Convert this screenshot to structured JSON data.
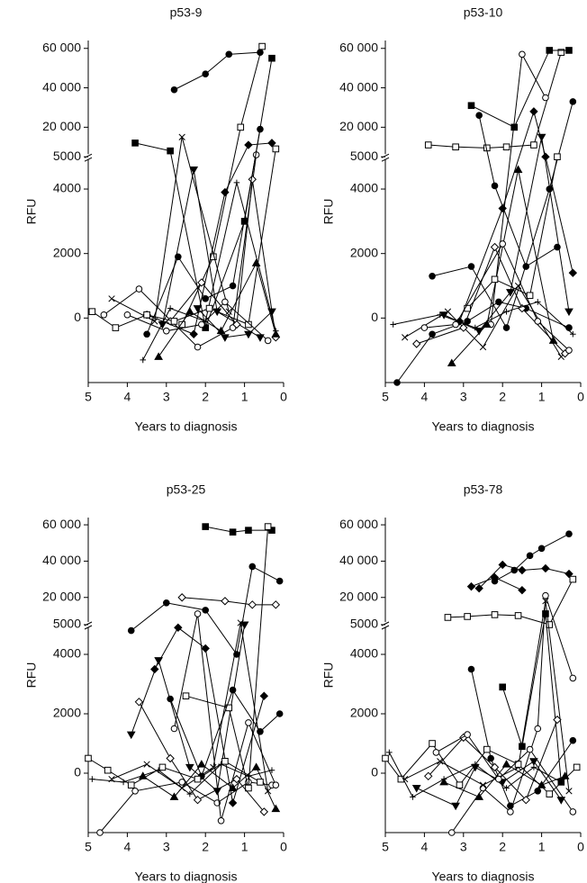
{
  "chart_data": [
    {
      "type": "line",
      "title": "p53-9",
      "xlabel": "Years to diagnosis",
      "ylabel": "RFU",
      "color": "#000000",
      "xlim": [
        5,
        0
      ],
      "xticks": [
        5,
        4,
        3,
        2,
        1,
        0
      ],
      "ylim": [
        -2000,
        64000
      ],
      "y_break": 5000,
      "yticks": [
        0,
        2000,
        4000,
        5000,
        {
          "value": 20000,
          "label": "20 000"
        },
        {
          "value": 40000,
          "label": "40 000"
        },
        {
          "value": 60000,
          "label": "60 000"
        }
      ],
      "series": [
        {
          "marker": "circle",
          "x": [
            2.8,
            2.0,
            1.4,
            0.6
          ],
          "values": [
            39000,
            47000,
            57000,
            58000
          ]
        },
        {
          "marker": "square-open",
          "x": [
            2.6,
            1.8,
            1.1,
            0.55
          ],
          "values": [
            -200,
            1900,
            20000,
            61000
          ]
        },
        {
          "marker": "square",
          "x": [
            3.8,
            2.9,
            2.0,
            1.0,
            0.3
          ],
          "values": [
            12000,
            8000,
            -300,
            3000,
            55000
          ]
        },
        {
          "marker": "diamond",
          "x": [
            3.5,
            2.3,
            1.5,
            0.9,
            0.3
          ],
          "values": [
            100,
            -500,
            3900,
            11000,
            12000
          ]
        },
        {
          "marker": "triangle-down",
          "x": [
            3.1,
            2.3,
            1.7,
            0.6
          ],
          "values": [
            -200,
            4600,
            200,
            -600
          ]
        },
        {
          "marker": "circle-open",
          "x": [
            4.6,
            3.7,
            2.2,
            1.3,
            0.7
          ],
          "values": [
            100,
            900,
            -900,
            -300,
            6000
          ]
        },
        {
          "marker": "cross",
          "x": [
            4.4,
            3.3,
            2.6,
            1.4
          ],
          "values": [
            600,
            -100,
            15000,
            200
          ]
        },
        {
          "marker": "plus",
          "x": [
            3.6,
            2.9,
            2.0,
            1.2,
            0.2
          ],
          "values": [
            -1300,
            300,
            -100,
            4200,
            -400
          ]
        },
        {
          "marker": "diamond-open",
          "x": [
            2.9,
            2.1,
            1.2,
            0.8,
            0.2
          ],
          "values": [
            -100,
            1100,
            -200,
            4300,
            -600
          ]
        },
        {
          "marker": "triangle",
          "x": [
            3.2,
            2.4,
            1.6,
            0.7,
            0.2
          ],
          "values": [
            -1200,
            200,
            -400,
            1700,
            -500
          ]
        },
        {
          "marker": "square-open",
          "x": [
            4.9,
            4.3,
            3.5,
            2.8,
            1.9,
            0.9,
            0.2
          ],
          "values": [
            200,
            -300,
            100,
            -100,
            300,
            -200,
            9000
          ]
        },
        {
          "marker": "circle",
          "x": [
            3.5,
            2.7,
            2.0,
            1.3,
            0.6
          ],
          "values": [
            -500,
            1900,
            600,
            1000,
            19000
          ]
        },
        {
          "marker": "triangle-down",
          "x": [
            2.2,
            1.5,
            0.9,
            0.3
          ],
          "values": [
            300,
            -600,
            -500,
            200
          ]
        },
        {
          "marker": "circle-open",
          "x": [
            4.0,
            3.0,
            2.1,
            1.5,
            0.4
          ],
          "values": [
            100,
            -400,
            -200,
            500,
            -700
          ]
        }
      ]
    },
    {
      "type": "line",
      "title": "p53-10",
      "xlabel": "Years to diagnosis",
      "ylabel": "RFU",
      "color": "#000000",
      "xlim": [
        5,
        0
      ],
      "xticks": [
        5,
        4,
        3,
        2,
        1,
        0
      ],
      "ylim": [
        -2000,
        64000
      ],
      "y_break": 5000,
      "yticks": [
        0,
        2000,
        4000,
        5000,
        {
          "value": 20000,
          "label": "20 000"
        },
        {
          "value": 40000,
          "label": "40 000"
        },
        {
          "value": 60000,
          "label": "60 000"
        }
      ],
      "series": [
        {
          "marker": "circle",
          "x": [
            4.7,
            3.8,
            2.9,
            2.1,
            1.4,
            0.3
          ],
          "values": [
            -2000,
            -500,
            -100,
            500,
            300,
            -300
          ]
        },
        {
          "marker": "square-open",
          "x": [
            3.9,
            3.2,
            2.4,
            1.9,
            1.2,
            0.5
          ],
          "values": [
            11000,
            10000,
            9500,
            10000,
            11000,
            58000
          ]
        },
        {
          "marker": "circle-open",
          "x": [
            2.3,
            1.5,
            0.9
          ],
          "values": [
            -200,
            57000,
            35000
          ]
        },
        {
          "marker": "square",
          "x": [
            2.8,
            1.7,
            0.8,
            0.3
          ],
          "values": [
            31000,
            20000,
            59000,
            59000
          ]
        },
        {
          "marker": "circle",
          "x": [
            2.6,
            2.2,
            1.4,
            0.6
          ],
          "values": [
            26000,
            4100,
            1600,
            2200
          ]
        },
        {
          "marker": "diamond",
          "x": [
            3.1,
            2.0,
            1.2,
            0.9,
            0.2
          ],
          "values": [
            -100,
            3400,
            28000,
            5000,
            1400
          ]
        },
        {
          "marker": "triangle",
          "x": [
            3.3,
            2.4,
            1.6,
            0.7
          ],
          "values": [
            -1400,
            -200,
            4600,
            -700
          ]
        },
        {
          "marker": "circle",
          "x": [
            3.8,
            2.8,
            1.9,
            0.8,
            0.2
          ],
          "values": [
            1300,
            1600,
            -300,
            4000,
            33000
          ]
        },
        {
          "marker": "cross",
          "x": [
            4.5,
            3.4,
            2.5,
            1.6,
            0.5
          ],
          "values": [
            -600,
            200,
            -900,
            1000,
            -1200
          ]
        },
        {
          "marker": "diamond-open",
          "x": [
            4.2,
            3.0,
            2.2,
            1.5,
            0.4
          ],
          "values": [
            -800,
            -300,
            2200,
            300,
            -1100
          ]
        },
        {
          "marker": "triangle-down",
          "x": [
            3.5,
            2.6,
            1.8,
            1.0,
            0.3
          ],
          "values": [
            100,
            -400,
            800,
            15000,
            200
          ]
        },
        {
          "marker": "plus",
          "x": [
            4.8,
            3.6,
            2.7,
            1.9,
            1.1,
            0.2
          ],
          "values": [
            -200,
            100,
            -300,
            200,
            500,
            -500
          ]
        },
        {
          "marker": "square-open",
          "x": [
            2.9,
            2.2,
            1.3,
            0.6
          ],
          "values": [
            300,
            1200,
            700,
            5000
          ]
        },
        {
          "marker": "circle-open",
          "x": [
            4.0,
            3.2,
            2.0,
            1.1,
            0.3
          ],
          "values": [
            -300,
            -200,
            2300,
            -100,
            -1000
          ]
        }
      ]
    },
    {
      "type": "line",
      "title": "p53-25",
      "xlabel": "Years to diagnosis",
      "ylabel": "RFU",
      "color": "#000000",
      "xlim": [
        5,
        0
      ],
      "xticks": [
        5,
        4,
        3,
        2,
        1,
        0
      ],
      "ylim": [
        -2000,
        64000
      ],
      "y_break": 5000,
      "yticks": [
        0,
        2000,
        4000,
        5000,
        {
          "value": 20000,
          "label": "20 000"
        },
        {
          "value": 40000,
          "label": "40 000"
        },
        {
          "value": 60000,
          "label": "60 000"
        }
      ],
      "series": [
        {
          "marker": "circle-open",
          "x": [
            4.7,
            3.8,
            2.6,
            1.7,
            0.9,
            0.3
          ],
          "values": [
            -2000,
            -600,
            -300,
            -1000,
            -300,
            -400
          ]
        },
        {
          "marker": "square",
          "x": [
            2.0,
            1.3,
            0.9,
            0.3
          ],
          "values": [
            59000,
            56000,
            57000,
            57000
          ]
        },
        {
          "marker": "circle",
          "x": [
            3.9,
            3.0,
            2.0,
            1.2,
            0.8,
            0.1
          ],
          "values": [
            4800,
            17000,
            13000,
            4000,
            37000,
            29000
          ]
        },
        {
          "marker": "diamond-open",
          "x": [
            2.6,
            1.5,
            0.8,
            0.2
          ],
          "values": [
            20000,
            18000,
            16000,
            16000
          ]
        },
        {
          "marker": "triangle-down",
          "x": [
            3.9,
            3.2,
            2.4,
            1.7,
            1.0
          ],
          "values": [
            1300,
            3800,
            200,
            -600,
            5000
          ]
        },
        {
          "marker": "square-open",
          "x": [
            2.5,
            1.4,
            0.9,
            0.4
          ],
          "values": [
            2600,
            2200,
            -500,
            59000
          ]
        },
        {
          "marker": "diamond",
          "x": [
            3.3,
            2.7,
            2.0,
            1.3,
            0.5
          ],
          "values": [
            3500,
            4900,
            4200,
            -1000,
            2600
          ]
        },
        {
          "marker": "circle",
          "x": [
            2.9,
            2.1,
            1.3,
            0.6,
            0.1
          ],
          "values": [
            2500,
            -100,
            2800,
            1400,
            2000
          ]
        },
        {
          "marker": "cross",
          "x": [
            4.4,
            3.5,
            2.6,
            1.8,
            1.1,
            0.4
          ],
          "values": [
            -200,
            300,
            -500,
            200,
            6000,
            -600
          ]
        },
        {
          "marker": "triangle",
          "x": [
            3.6,
            2.8,
            2.1,
            1.3,
            0.7,
            0.2
          ],
          "values": [
            -100,
            -800,
            300,
            -500,
            200,
            -1200
          ]
        },
        {
          "marker": "square-open",
          "x": [
            5.0,
            4.5,
            3.9,
            3.1,
            2.2,
            1.5,
            0.6
          ],
          "values": [
            500,
            100,
            -400,
            200,
            -200,
            400,
            -300
          ]
        },
        {
          "marker": "plus",
          "x": [
            4.9,
            4.1,
            3.2,
            2.4,
            1.6,
            0.9,
            0.3
          ],
          "values": [
            -200,
            -300,
            100,
            -700,
            300,
            -100,
            100
          ]
        },
        {
          "marker": "diamond-open",
          "x": [
            3.7,
            2.9,
            2.2,
            1.2,
            0.5
          ],
          "values": [
            2400,
            500,
            -900,
            -200,
            -1300
          ]
        },
        {
          "marker": "circle-open",
          "x": [
            2.8,
            2.2,
            1.6,
            0.9,
            0.2
          ],
          "values": [
            1500,
            11000,
            -1600,
            1700,
            -400
          ]
        }
      ]
    },
    {
      "type": "line",
      "title": "p53-78",
      "xlabel": "Years to diagnosis",
      "ylabel": "RFU",
      "color": "#000000",
      "xlim": [
        5,
        0
      ],
      "xticks": [
        5,
        4,
        3,
        2,
        1,
        0
      ],
      "ylim": [
        -2000,
        64000
      ],
      "y_break": 5000,
      "yticks": [
        0,
        2000,
        4000,
        5000,
        {
          "value": 20000,
          "label": "20 000"
        },
        {
          "value": 40000,
          "label": "40 000"
        },
        {
          "value": 60000,
          "label": "60 000"
        }
      ],
      "series": [
        {
          "marker": "circle",
          "x": [
            2.2,
            1.7,
            1.3,
            1.0,
            0.3
          ],
          "values": [
            29000,
            35000,
            43000,
            47000,
            55000
          ]
        },
        {
          "marker": "diamond",
          "x": [
            2.6,
            2.0,
            1.5,
            0.9,
            0.3
          ],
          "values": [
            25000,
            38000,
            35000,
            36000,
            33000
          ]
        },
        {
          "marker": "square-open",
          "x": [
            3.4,
            2.9,
            2.2,
            1.6,
            0.8,
            0.2
          ],
          "values": [
            9000,
            9500,
            10500,
            10000,
            5000,
            30000
          ]
        },
        {
          "marker": "circle-open",
          "x": [
            3.3,
            2.5,
            1.8,
            1.1,
            0.9,
            0.2
          ],
          "values": [
            -2000,
            -500,
            -1300,
            1500,
            21000,
            3200
          ]
        },
        {
          "marker": "square",
          "x": [
            2.0,
            1.5,
            0.9,
            0.5
          ],
          "values": [
            2900,
            900,
            11000,
            -300
          ]
        },
        {
          "marker": "diamond",
          "x": [
            2.8,
            2.2,
            1.5
          ],
          "values": [
            26000,
            31000,
            24000
          ]
        },
        {
          "marker": "cross",
          "x": [
            4.5,
            3.6,
            2.5,
            1.6,
            0.9,
            0.3
          ],
          "values": [
            -200,
            400,
            -400,
            200,
            18000,
            -600
          ]
        },
        {
          "marker": "circle",
          "x": [
            2.8,
            2.3,
            1.8,
            1.1,
            0.2
          ],
          "values": [
            3500,
            500,
            -1100,
            -600,
            1100
          ]
        },
        {
          "marker": "triangle-down",
          "x": [
            4.2,
            3.2,
            2.7,
            2.0,
            1.2,
            0.5
          ],
          "values": [
            -500,
            -1100,
            200,
            -300,
            400,
            -900
          ]
        },
        {
          "marker": "square-open",
          "x": [
            5.0,
            4.6,
            3.8,
            3.1,
            2.4,
            1.6,
            0.8,
            0.1
          ],
          "values": [
            500,
            -200,
            1000,
            -400,
            800,
            300,
            -700,
            200
          ]
        },
        {
          "marker": "plus",
          "x": [
            4.9,
            4.3,
            3.5,
            2.7,
            1.9,
            1.2,
            0.5
          ],
          "values": [
            700,
            -800,
            -200,
            300,
            -500,
            200,
            -300
          ]
        },
        {
          "marker": "diamond-open",
          "x": [
            3.9,
            3.0,
            2.2,
            1.4,
            0.6
          ],
          "values": [
            -100,
            1200,
            200,
            -900,
            1800
          ]
        },
        {
          "marker": "triangle",
          "x": [
            3.5,
            2.6,
            1.9,
            1.0,
            0.4
          ],
          "values": [
            -300,
            -800,
            300,
            -400,
            -100
          ]
        },
        {
          "marker": "circle-open",
          "x": [
            3.7,
            2.9,
            2.1,
            1.3,
            0.2
          ],
          "values": [
            700,
            1300,
            -200,
            800,
            -1300
          ]
        }
      ]
    }
  ]
}
